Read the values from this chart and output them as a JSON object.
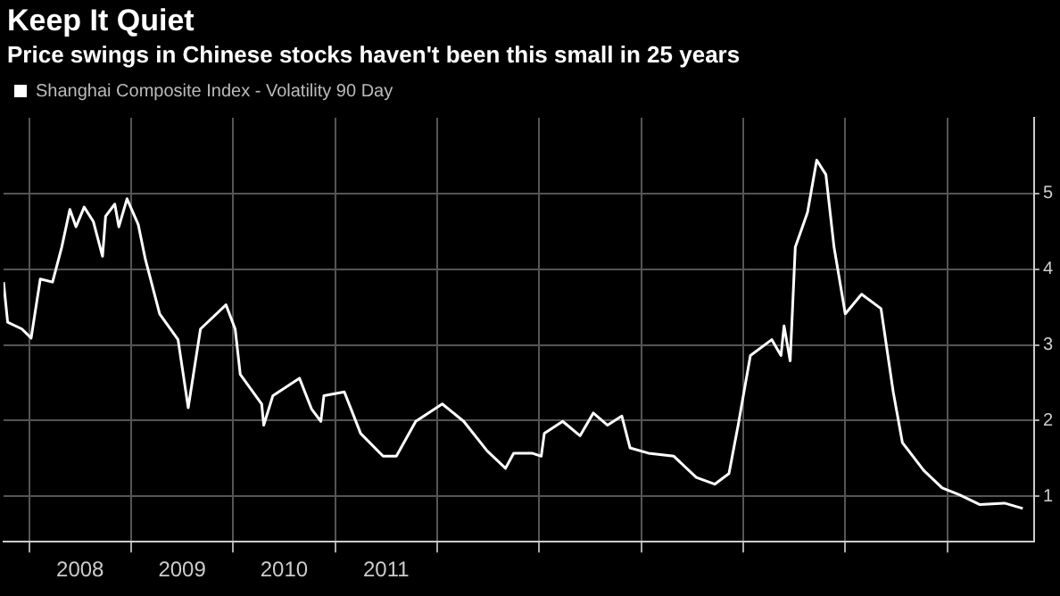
{
  "chart_data": {
    "type": "line",
    "title": "Keep It Quiet",
    "subtitle": "Price swings in Chinese stocks haven't been this small in 25 years",
    "x": [
      2007.75,
      2007.79,
      2007.93,
      2008.02,
      2008.11,
      2008.23,
      2008.32,
      2008.4,
      2008.46,
      2008.54,
      2008.63,
      2008.72,
      2008.75,
      2008.84,
      2008.88,
      2008.96,
      2009.07,
      2009.14,
      2009.28,
      2009.46,
      2009.56,
      2009.68,
      2009.93,
      2010.02,
      2010.07,
      2010.28,
      2010.3,
      2010.39,
      2010.65,
      2010.77,
      2010.86,
      2010.89,
      2011.09,
      2011.25,
      2011.47,
      2011.6,
      2011.79,
      2012.05,
      2012.26,
      2012.49,
      2012.67,
      2012.75,
      2012.93,
      2013.02,
      2013.05,
      2013.23,
      2013.4,
      2013.53,
      2013.67,
      2013.81,
      2013.89,
      2014.07,
      2014.32,
      2014.54,
      2014.72,
      2014.86,
      2014.95,
      2015.07,
      2015.28,
      2015.37,
      2015.4,
      2015.46,
      2015.51,
      2015.63,
      2015.72,
      2015.81,
      2015.89,
      2016.0,
      2016.16,
      2016.35,
      2016.47,
      2016.56,
      2016.77,
      2016.95,
      2017.12,
      2017.32,
      2017.56,
      2017.74
    ],
    "series": [
      {
        "name": "Shanghai Composite Index - Volatility 90 Day",
        "color": "#ffffff",
        "values": [
          3.83,
          3.3,
          3.21,
          3.09,
          3.87,
          3.83,
          4.29,
          4.79,
          4.56,
          4.82,
          4.63,
          4.17,
          4.7,
          4.86,
          4.56,
          4.93,
          4.59,
          4.13,
          3.41,
          3.07,
          2.17,
          3.21,
          3.53,
          3.21,
          2.61,
          2.22,
          1.94,
          2.33,
          2.56,
          2.15,
          1.99,
          2.33,
          2.38,
          1.83,
          1.53,
          1.53,
          1.99,
          2.22,
          1.99,
          1.6,
          1.37,
          1.57,
          1.57,
          1.53,
          1.83,
          1.99,
          1.8,
          2.1,
          1.94,
          2.06,
          1.64,
          1.57,
          1.53,
          1.25,
          1.16,
          1.3,
          1.94,
          2.86,
          3.07,
          2.86,
          3.25,
          2.79,
          4.29,
          4.75,
          5.44,
          5.25,
          4.29,
          3.41,
          3.67,
          3.48,
          2.38,
          1.71,
          1.34,
          1.11,
          1.02,
          0.89,
          0.91,
          0.84
        ]
      }
    ],
    "xlim": [
      2007.75,
      2017.85
    ],
    "xticks": [
      {
        "value": 2008,
        "label": null
      },
      {
        "value": 2008.5,
        "label": "2008"
      },
      {
        "value": 2009,
        "label": null
      },
      {
        "value": 2009.5,
        "label": "2009"
      },
      {
        "value": 2010,
        "label": null
      },
      {
        "value": 2010.5,
        "label": "2010"
      },
      {
        "value": 2011,
        "label": null
      },
      {
        "value": 2011.5,
        "label": "2011"
      },
      {
        "value": 2012,
        "label": null
      },
      {
        "value": 2013,
        "label": null
      },
      {
        "value": 2014,
        "label": null
      },
      {
        "value": 2015,
        "label": null
      },
      {
        "value": 2016,
        "label": null
      },
      {
        "value": 2017,
        "label": null
      }
    ],
    "ylim": [
      0.4,
      6
    ],
    "yticks": [
      1,
      2,
      3,
      4,
      5
    ],
    "grid": true,
    "legend": "top left",
    "marker": "none",
    "line_style": "solid"
  }
}
